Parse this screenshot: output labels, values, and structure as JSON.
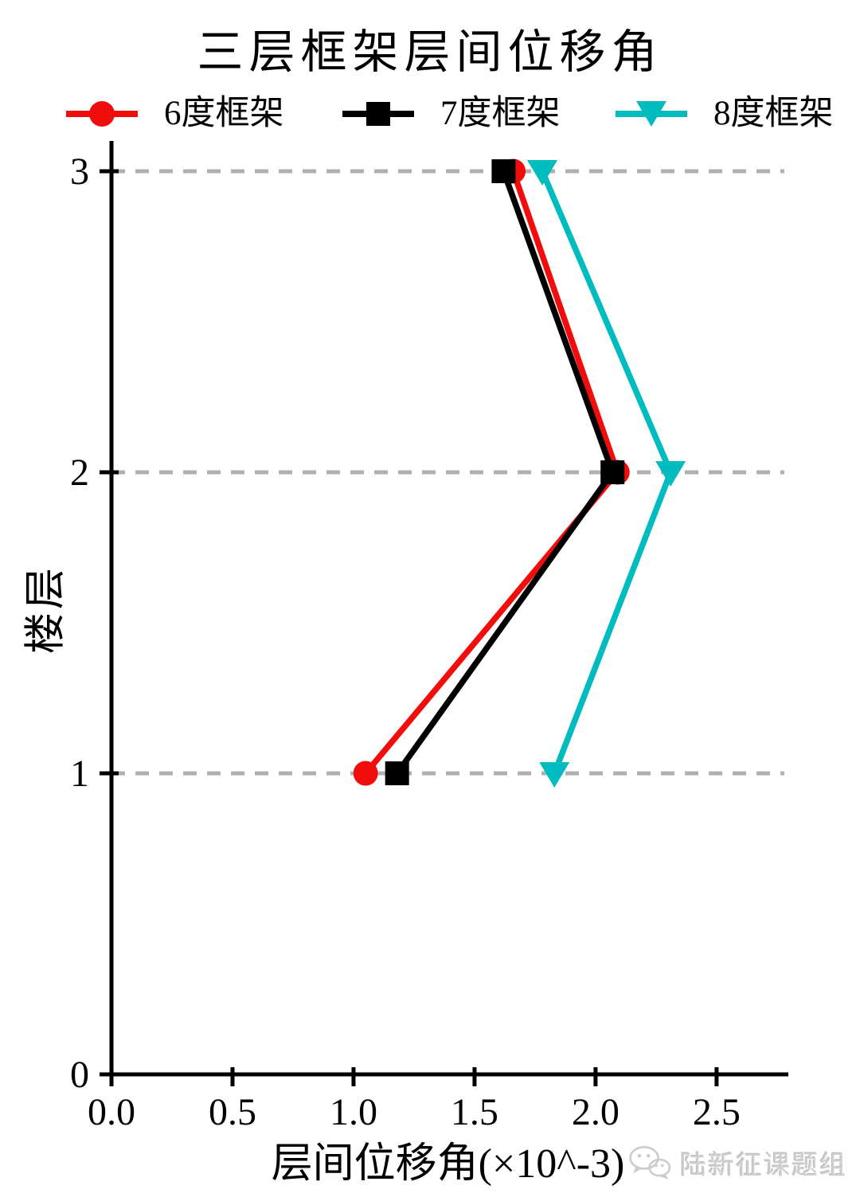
{
  "chart_data": {
    "type": "line",
    "title": "三层框架层间位移角",
    "xlabel": "层间位移角(×10^-3)",
    "ylabel": "楼层",
    "xlim": [
      0.0,
      2.78
    ],
    "ylim": [
      0,
      3
    ],
    "xticks": [
      "0.0",
      "0.5",
      "1.0",
      "1.5",
      "2.0",
      "2.5"
    ],
    "yticks": [
      "0",
      "1",
      "2",
      "3"
    ],
    "grid": {
      "horizontal_dashed_at_floors": [
        1,
        2,
        3
      ],
      "color": "#b0b0b0",
      "style": "dashed"
    },
    "legend_position": "top",
    "floors": [
      1,
      2,
      3
    ],
    "series": [
      {
        "name": "6度框架",
        "marker": "circle",
        "color": "#f20d0d",
        "values": [
          1.05,
          2.09,
          1.66
        ]
      },
      {
        "name": "7度框架",
        "marker": "square",
        "color": "#000000",
        "values": [
          1.18,
          2.07,
          1.62
        ]
      },
      {
        "name": "8度框架",
        "marker": "triangle-down",
        "color": "#00bcbe",
        "values": [
          1.83,
          2.31,
          1.78
        ]
      }
    ]
  },
  "watermark": {
    "icon": "wechat-logo",
    "text": "陆新征课题组"
  }
}
